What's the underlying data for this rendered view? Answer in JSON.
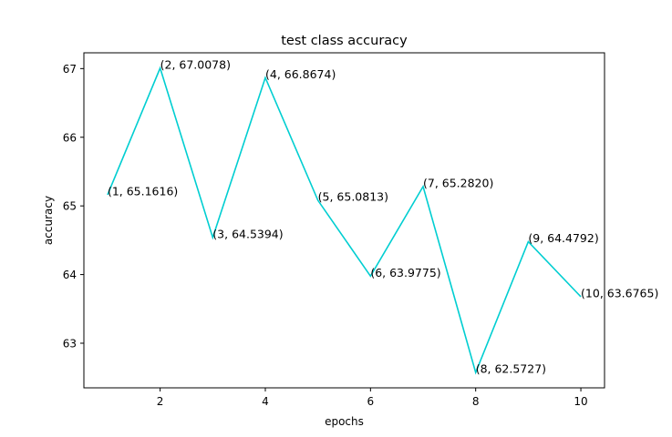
{
  "chart_data": {
    "type": "line",
    "title": "test class accuracy",
    "xlabel": "epochs",
    "ylabel": "accuracy",
    "xlim": [
      0.55,
      10.45
    ],
    "ylim": [
      62.35,
      67.23
    ],
    "xticks": [
      2,
      4,
      6,
      8,
      10
    ],
    "yticks": [
      63,
      64,
      65,
      66,
      67
    ],
    "grid": false,
    "legend": "none",
    "line_color": "#00CED1",
    "series": [
      {
        "x": [
          1,
          2,
          3,
          4,
          5,
          6,
          7,
          8,
          9,
          10
        ],
        "values": [
          65.1616,
          67.0078,
          64.5394,
          66.8674,
          65.0813,
          63.9775,
          65.282,
          62.5727,
          64.4792,
          63.6765
        ]
      }
    ],
    "annotations": [
      "(1, 65.1616)",
      "(2, 67.0078)",
      "(3, 64.5394)",
      "(4, 66.8674)",
      "(5, 65.0813)",
      "(6, 63.9775)",
      "(7, 65.2820)",
      "(8, 62.5727)",
      "(9, 64.4792)",
      "(10, 63.6765)"
    ]
  }
}
